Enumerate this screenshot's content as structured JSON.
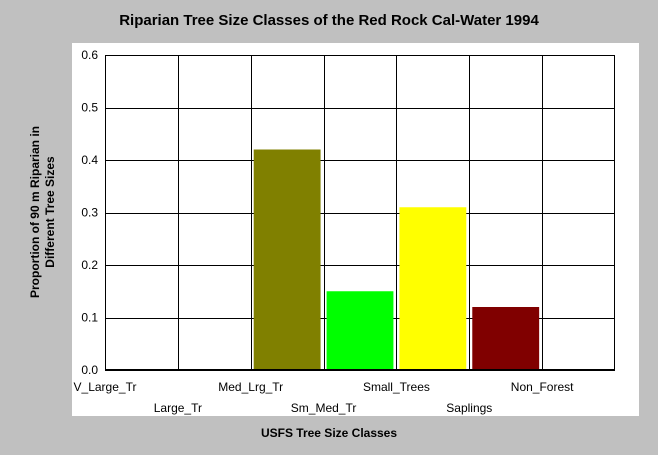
{
  "chart_data": {
    "type": "bar",
    "title": "Riparian Tree Size Classes of the Red Rock Cal-Water 1994",
    "xlabel": "USFS Tree Size Classes",
    "ylabel_lines": [
      "Proportion of 90 m Riparian in",
      "Different Tree Sizes"
    ],
    "categories": [
      "V_Large_Tr",
      "Large_Tr",
      "Med_Lrg_Tr",
      "Sm_Med_Tr",
      "Small_Trees",
      "Saplings",
      "Non_Forest"
    ],
    "values": [
      0,
      0,
      0.42,
      0.15,
      0.31,
      0.12,
      0
    ],
    "bar_colors": [
      "#808080",
      "#808080",
      "#808000",
      "#00ff00",
      "#ffff00",
      "#800000",
      "#808080"
    ],
    "ylim": [
      0,
      0.6
    ],
    "yticks": [
      0.0,
      0.1,
      0.2,
      0.3,
      0.4,
      0.5,
      0.6
    ],
    "ytick_labels": [
      "0.0",
      "0.1",
      "0.2",
      "0.3",
      "0.4",
      "0.5",
      "0.6"
    ],
    "grid": true
  }
}
